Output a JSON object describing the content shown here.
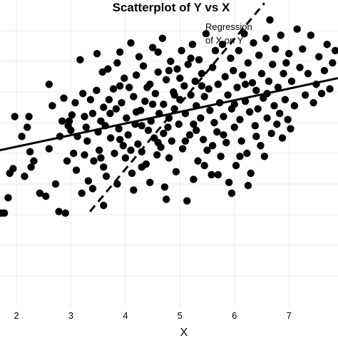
{
  "chart_data": {
    "type": "scatter",
    "title": "Scatterplot of Y vs X",
    "xlabel": "X",
    "ylabel": "",
    "xlim": [
      1.7,
      7.9
    ],
    "ylim": [
      0,
      10
    ],
    "x_ticks": [
      2,
      3,
      4,
      5,
      6,
      7
    ],
    "grid": true,
    "annotation": "Regression\nof X on Y",
    "points": [
      {
        "x": 1.72,
        "y": 3.05
      },
      {
        "x": 1.78,
        "y": 3.05
      },
      {
        "x": 1.85,
        "y": 3.55
      },
      {
        "x": 1.88,
        "y": 4.35
      },
      {
        "x": 1.94,
        "y": 4.5
      },
      {
        "x": 1.97,
        "y": 6.2
      },
      {
        "x": 2.15,
        "y": 4.25
      },
      {
        "x": 2.2,
        "y": 5.85
      },
      {
        "x": 2.23,
        "y": 6.2
      },
      {
        "x": 2.25,
        "y": 5.05
      },
      {
        "x": 2.27,
        "y": 4.55
      },
      {
        "x": 2.32,
        "y": 4.75
      },
      {
        "x": 2.43,
        "y": 3.7
      },
      {
        "x": 2.54,
        "y": 3.6
      },
      {
        "x": 2.6,
        "y": 7.25
      },
      {
        "x": 2.66,
        "y": 6.55
      },
      {
        "x": 2.72,
        "y": 4.0
      },
      {
        "x": 2.78,
        "y": 3.1
      },
      {
        "x": 2.84,
        "y": 6.05
      },
      {
        "x": 2.87,
        "y": 6.8
      },
      {
        "x": 2.9,
        "y": 3.05
      },
      {
        "x": 2.93,
        "y": 4.75
      },
      {
        "x": 2.95,
        "y": 5.9
      },
      {
        "x": 2.97,
        "y": 6.05
      },
      {
        "x": 3.0,
        "y": 5.75
      },
      {
        "x": 3.02,
        "y": 6.25
      },
      {
        "x": 3.05,
        "y": 5.0
      },
      {
        "x": 3.08,
        "y": 6.65
      },
      {
        "x": 3.12,
        "y": 5.55
      },
      {
        "x": 3.17,
        "y": 8.05
      },
      {
        "x": 3.2,
        "y": 3.7
      },
      {
        "x": 3.22,
        "y": 6.95
      },
      {
        "x": 3.25,
        "y": 6.2
      },
      {
        "x": 3.28,
        "y": 5.85
      },
      {
        "x": 3.32,
        "y": 4.1
      },
      {
        "x": 3.36,
        "y": 6.75
      },
      {
        "x": 3.4,
        "y": 6.3
      },
      {
        "x": 3.42,
        "y": 4.75
      },
      {
        "x": 3.47,
        "y": 7.05
      },
      {
        "x": 3.48,
        "y": 8.25
      },
      {
        "x": 3.52,
        "y": 5.1
      },
      {
        "x": 3.55,
        "y": 6.05
      },
      {
        "x": 3.58,
        "y": 7.65
      },
      {
        "x": 3.6,
        "y": 4.55
      },
      {
        "x": 3.63,
        "y": 5.9
      },
      {
        "x": 3.65,
        "y": 4.25
      },
      {
        "x": 3.68,
        "y": 7.75
      },
      {
        "x": 3.72,
        "y": 6.3
      },
      {
        "x": 3.73,
        "y": 5.5
      },
      {
        "x": 3.78,
        "y": 7.1
      },
      {
        "x": 3.8,
        "y": 5.0
      },
      {
        "x": 3.83,
        "y": 6.45
      },
      {
        "x": 3.85,
        "y": 7.95
      },
      {
        "x": 3.88,
        "y": 5.8
      },
      {
        "x": 3.9,
        "y": 8.3
      },
      {
        "x": 3.93,
        "y": 6.65
      },
      {
        "x": 3.96,
        "y": 5.25
      },
      {
        "x": 3.98,
        "y": 7.45
      },
      {
        "x": 4.02,
        "y": 6.15
      },
      {
        "x": 4.05,
        "y": 5.6
      },
      {
        "x": 4.07,
        "y": 7.15
      },
      {
        "x": 4.1,
        "y": 8.6
      },
      {
        "x": 4.12,
        "y": 4.35
      },
      {
        "x": 4.15,
        "y": 6.85
      },
      {
        "x": 4.18,
        "y": 5.95
      },
      {
        "x": 4.2,
        "y": 7.55
      },
      {
        "x": 4.23,
        "y": 5.3
      },
      {
        "x": 4.25,
        "y": 8.15
      },
      {
        "x": 4.28,
        "y": 6.4
      },
      {
        "x": 4.3,
        "y": 5.05
      },
      {
        "x": 4.33,
        "y": 7.85
      },
      {
        "x": 4.36,
        "y": 6.7
      },
      {
        "x": 4.38,
        "y": 4.65
      },
      {
        "x": 4.42,
        "y": 5.75
      },
      {
        "x": 4.45,
        "y": 7.25
      },
      {
        "x": 4.47,
        "y": 6.05
      },
      {
        "x": 4.5,
        "y": 8.45
      },
      {
        "x": 4.53,
        "y": 5.5
      },
      {
        "x": 4.55,
        "y": 6.95
      },
      {
        "x": 4.58,
        "y": 4.95
      },
      {
        "x": 4.6,
        "y": 7.65
      },
      {
        "x": 4.62,
        "y": 6.3
      },
      {
        "x": 4.65,
        "y": 5.2
      },
      {
        "x": 4.68,
        "y": 8.75
      },
      {
        "x": 4.7,
        "y": 6.6
      },
      {
        "x": 4.72,
        "y": 3.9
      },
      {
        "x": 4.75,
        "y": 7.4
      },
      {
        "x": 4.78,
        "y": 5.85
      },
      {
        "x": 4.8,
        "y": 6.15
      },
      {
        "x": 4.83,
        "y": 8.0
      },
      {
        "x": 4.85,
        "y": 5.4
      },
      {
        "x": 4.88,
        "y": 7.0
      },
      {
        "x": 4.9,
        "y": 6.45
      },
      {
        "x": 4.93,
        "y": 4.4
      },
      {
        "x": 4.95,
        "y": 7.75
      },
      {
        "x": 4.98,
        "y": 5.95
      },
      {
        "x": 5.0,
        "y": 6.75
      },
      {
        "x": 5.03,
        "y": 8.35
      },
      {
        "x": 5.05,
        "y": 5.15
      },
      {
        "x": 5.08,
        "y": 7.2
      },
      {
        "x": 5.1,
        "y": 6.3
      },
      {
        "x": 5.13,
        "y": 3.45
      },
      {
        "x": 5.15,
        "y": 7.9
      },
      {
        "x": 5.18,
        "y": 5.6
      },
      {
        "x": 5.2,
        "y": 6.9
      },
      {
        "x": 5.23,
        "y": 8.55
      },
      {
        "x": 5.25,
        "y": 5.95
      },
      {
        "x": 5.28,
        "y": 7.35
      },
      {
        "x": 5.3,
        "y": 6.55
      },
      {
        "x": 5.33,
        "y": 4.75
      },
      {
        "x": 5.35,
        "y": 8.05
      },
      {
        "x": 5.38,
        "y": 6.15
      },
      {
        "x": 5.4,
        "y": 7.6
      },
      {
        "x": 5.43,
        "y": 5.45
      },
      {
        "x": 5.45,
        "y": 6.85
      },
      {
        "x": 5.48,
        "y": 8.9
      },
      {
        "x": 5.5,
        "y": 5.1
      },
      {
        "x": 5.53,
        "y": 7.1
      },
      {
        "x": 5.55,
        "y": 6.4
      },
      {
        "x": 5.58,
        "y": 4.3
      },
      {
        "x": 5.6,
        "y": 7.8
      },
      {
        "x": 5.63,
        "y": 6.0
      },
      {
        "x": 5.65,
        "y": 8.35
      },
      {
        "x": 5.68,
        "y": 5.7
      },
      {
        "x": 5.7,
        "y": 7.25
      },
      {
        "x": 5.73,
        "y": 6.65
      },
      {
        "x": 5.75,
        "y": 4.9
      },
      {
        "x": 5.78,
        "y": 8.55
      },
      {
        "x": 5.8,
        "y": 6.2
      },
      {
        "x": 5.83,
        "y": 7.5
      },
      {
        "x": 5.85,
        "y": 5.35
      },
      {
        "x": 5.88,
        "y": 6.9
      },
      {
        "x": 5.9,
        "y": 4.05
      },
      {
        "x": 5.93,
        "y": 8.1
      },
      {
        "x": 5.95,
        "y": 6.45
      },
      {
        "x": 5.98,
        "y": 7.7
      },
      {
        "x": 6.0,
        "y": 5.85
      },
      {
        "x": 6.03,
        "y": 4.6
      },
      {
        "x": 6.05,
        "y": 7.15
      },
      {
        "x": 6.08,
        "y": 8.35
      },
      {
        "x": 6.1,
        "y": 6.1
      },
      {
        "x": 6.13,
        "y": 5.4
      },
      {
        "x": 6.15,
        "y": 7.55
      },
      {
        "x": 6.18,
        "y": 8.9
      },
      {
        "x": 6.2,
        "y": 6.7
      },
      {
        "x": 6.23,
        "y": 5.0
      },
      {
        "x": 6.25,
        "y": 7.95
      },
      {
        "x": 6.28,
        "y": 6.35
      },
      {
        "x": 6.3,
        "y": 4.35
      },
      {
        "x": 6.33,
        "y": 7.3
      },
      {
        "x": 6.35,
        "y": 8.6
      },
      {
        "x": 6.38,
        "y": 5.9
      },
      {
        "x": 6.4,
        "y": 7.05
      },
      {
        "x": 6.43,
        "y": 6.45
      },
      {
        "x": 6.45,
        "y": 8.2
      },
      {
        "x": 6.48,
        "y": 5.25
      },
      {
        "x": 6.5,
        "y": 7.6
      },
      {
        "x": 6.53,
        "y": 6.8
      },
      {
        "x": 6.55,
        "y": 4.9
      },
      {
        "x": 6.58,
        "y": 8.75
      },
      {
        "x": 6.6,
        "y": 6.15
      },
      {
        "x": 6.63,
        "y": 7.35
      },
      {
        "x": 6.65,
        "y": 9.35
      },
      {
        "x": 6.68,
        "y": 5.65
      },
      {
        "x": 6.7,
        "y": 7.9
      },
      {
        "x": 6.73,
        "y": 6.55
      },
      {
        "x": 6.75,
        "y": 8.4
      },
      {
        "x": 6.78,
        "y": 5.95
      },
      {
        "x": 6.8,
        "y": 7.15
      },
      {
        "x": 6.83,
        "y": 6.3
      },
      {
        "x": 6.85,
        "y": 8.85
      },
      {
        "x": 6.88,
        "y": 5.5
      },
      {
        "x": 6.9,
        "y": 7.6
      },
      {
        "x": 6.93,
        "y": 6.75
      },
      {
        "x": 6.95,
        "y": 7.95
      },
      {
        "x": 6.98,
        "y": 6.1
      },
      {
        "x": 7.0,
        "y": 8.25
      },
      {
        "x": 7.03,
        "y": 5.8
      },
      {
        "x": 7.05,
        "y": 7.35
      },
      {
        "x": 7.1,
        "y": 6.55
      },
      {
        "x": 7.15,
        "y": 9.05
      },
      {
        "x": 7.2,
        "y": 7.8
      },
      {
        "x": 7.25,
        "y": 8.4
      },
      {
        "x": 7.3,
        "y": 6.9
      },
      {
        "x": 7.35,
        "y": 7.6
      },
      {
        "x": 7.4,
        "y": 8.85
      },
      {
        "x": 7.45,
        "y": 6.65
      },
      {
        "x": 7.5,
        "y": 7.25
      },
      {
        "x": 7.55,
        "y": 8.15
      },
      {
        "x": 7.6,
        "y": 6.95
      },
      {
        "x": 7.65,
        "y": 7.7
      },
      {
        "x": 7.7,
        "y": 8.55
      },
      {
        "x": 7.75,
        "y": 7.1
      },
      {
        "x": 7.8,
        "y": 7.95
      },
      {
        "x": 7.85,
        "y": 8.35
      },
      {
        "x": 4.4,
        "y": 7.15
      },
      {
        "x": 4.6,
        "y": 8.3
      },
      {
        "x": 4.8,
        "y": 7.7
      },
      {
        "x": 5.0,
        "y": 7.45
      },
      {
        "x": 5.2,
        "y": 8.1
      },
      {
        "x": 5.4,
        "y": 7.2
      },
      {
        "x": 4.2,
        "y": 6.35
      },
      {
        "x": 4.5,
        "y": 6.6
      },
      {
        "x": 4.7,
        "y": 5.65
      },
      {
        "x": 4.9,
        "y": 6.9
      },
      {
        "x": 5.1,
        "y": 5.4
      },
      {
        "x": 5.3,
        "y": 5.75
      },
      {
        "x": 3.7,
        "y": 6.75
      },
      {
        "x": 3.9,
        "y": 5.45
      },
      {
        "x": 4.1,
        "y": 5.1
      },
      {
        "x": 4.3,
        "y": 5.9
      },
      {
        "x": 4.6,
        "y": 5.35
      },
      {
        "x": 4.8,
        "y": 4.85
      },
      {
        "x": 5.6,
        "y": 5.25
      },
      {
        "x": 5.8,
        "y": 5.6
      },
      {
        "x": 6.0,
        "y": 6.6
      },
      {
        "x": 6.2,
        "y": 7.25
      },
      {
        "x": 6.4,
        "y": 5.55
      },
      {
        "x": 6.6,
        "y": 6.95
      },
      {
        "x": 3.3,
        "y": 5.4
      },
      {
        "x": 3.5,
        "y": 5.7
      },
      {
        "x": 3.6,
        "y": 6.5
      },
      {
        "x": 3.9,
        "y": 7.2
      },
      {
        "x": 4.0,
        "y": 4.85
      },
      {
        "x": 4.3,
        "y": 4.55
      },
      {
        "x": 2.1,
        "y": 5.55
      },
      {
        "x": 2.6,
        "y": 5.15
      },
      {
        "x": 2.8,
        "y": 5.55
      },
      {
        "x": 3.1,
        "y": 4.45
      },
      {
        "x": 3.4,
        "y": 3.85
      },
      {
        "x": 3.6,
        "y": 3.3
      },
      {
        "x": 5.45,
        "y": 4.6
      },
      {
        "x": 5.7,
        "y": 4.3
      },
      {
        "x": 5.95,
        "y": 3.7
      },
      {
        "x": 6.25,
        "y": 3.95
      },
      {
        "x": 6.1,
        "y": 4.9
      },
      {
        "x": 5.25,
        "y": 4.15
      },
      {
        "x": 4.75,
        "y": 3.5
      },
      {
        "x": 4.45,
        "y": 4.05
      },
      {
        "x": 4.15,
        "y": 3.8
      },
      {
        "x": 3.85,
        "y": 4.0
      },
      {
        "x": 3.55,
        "y": 4.85
      },
      {
        "x": 3.25,
        "y": 4.95
      }
    ],
    "lines": [
      {
        "style": "solid",
        "x": [
          1.7,
          7.9
        ],
        "y": [
          5.1,
          7.45
        ]
      },
      {
        "style": "dashed",
        "x": [
          3.35,
          6.55
        ],
        "y": [
          3.1,
          9.9
        ]
      }
    ]
  }
}
